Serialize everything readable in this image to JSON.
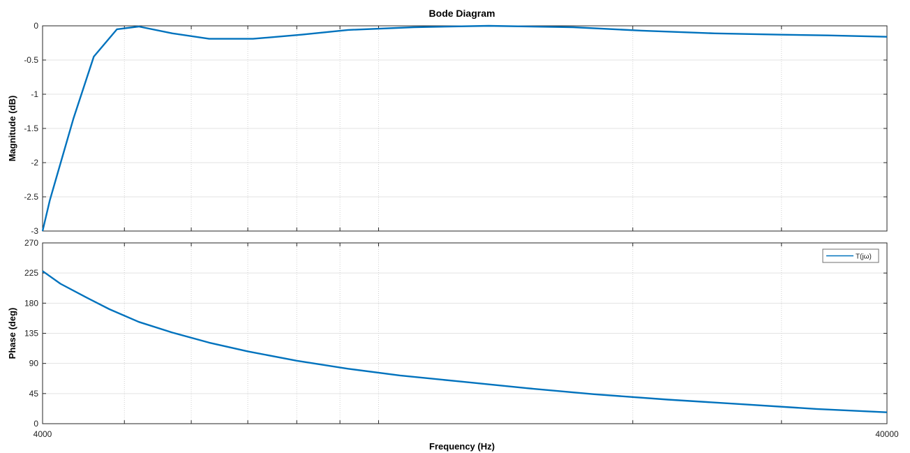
{
  "chart_data": {
    "type": "line",
    "title": "Bode Diagram",
    "xlabel": "Frequency  (Hz)",
    "xscale": "log",
    "xlim": [
      4000,
      40000
    ],
    "xticks": [
      "4000",
      "40000"
    ],
    "grid": true,
    "line_color": "#0072BD",
    "legend": {
      "placement": "top-right",
      "panel": "phase",
      "entries": [
        "T(jω)"
      ]
    },
    "panels": [
      {
        "name": "magnitude",
        "ylabel": "Magnitude (dB)",
        "ylim": [
          -3,
          0
        ],
        "yticks": [
          0,
          -0.5,
          -1,
          -1.5,
          -2,
          -2.5,
          -3
        ],
        "series": [
          {
            "x": [
              4000,
              4080,
              4350,
              4600,
              4900,
              5200,
              5700,
              6300,
              7100,
              8100,
              9200,
              11000,
              13500,
              17000,
              20500,
              25000,
              30000,
              34000,
              40000
            ],
            "y": [
              -3.0,
              -2.55,
              -1.36,
              -0.45,
              -0.05,
              -0.01,
              -0.11,
              -0.19,
              -0.19,
              -0.13,
              -0.06,
              -0.02,
              0.0,
              -0.02,
              -0.07,
              -0.11,
              -0.13,
              -0.14,
              -0.16
            ]
          }
        ]
      },
      {
        "name": "phase",
        "ylabel": "Phase (deg)",
        "ylim": [
          0,
          270
        ],
        "yticks": [
          0,
          45,
          90,
          135,
          180,
          225,
          270
        ],
        "series": [
          {
            "name": "T(jω)",
            "x": [
              4000,
              4200,
              4500,
              4800,
              5200,
              5700,
              6300,
              7000,
              8000,
              9200,
              10600,
              12500,
              15000,
              18000,
              22000,
              27000,
              33000,
              40000
            ],
            "y": [
              228,
              209,
              189,
              171,
              152,
              136,
              121,
              108,
              94,
              82,
              72,
              63,
              53,
              44,
              36,
              29,
              22,
              17
            ]
          }
        ]
      }
    ]
  }
}
